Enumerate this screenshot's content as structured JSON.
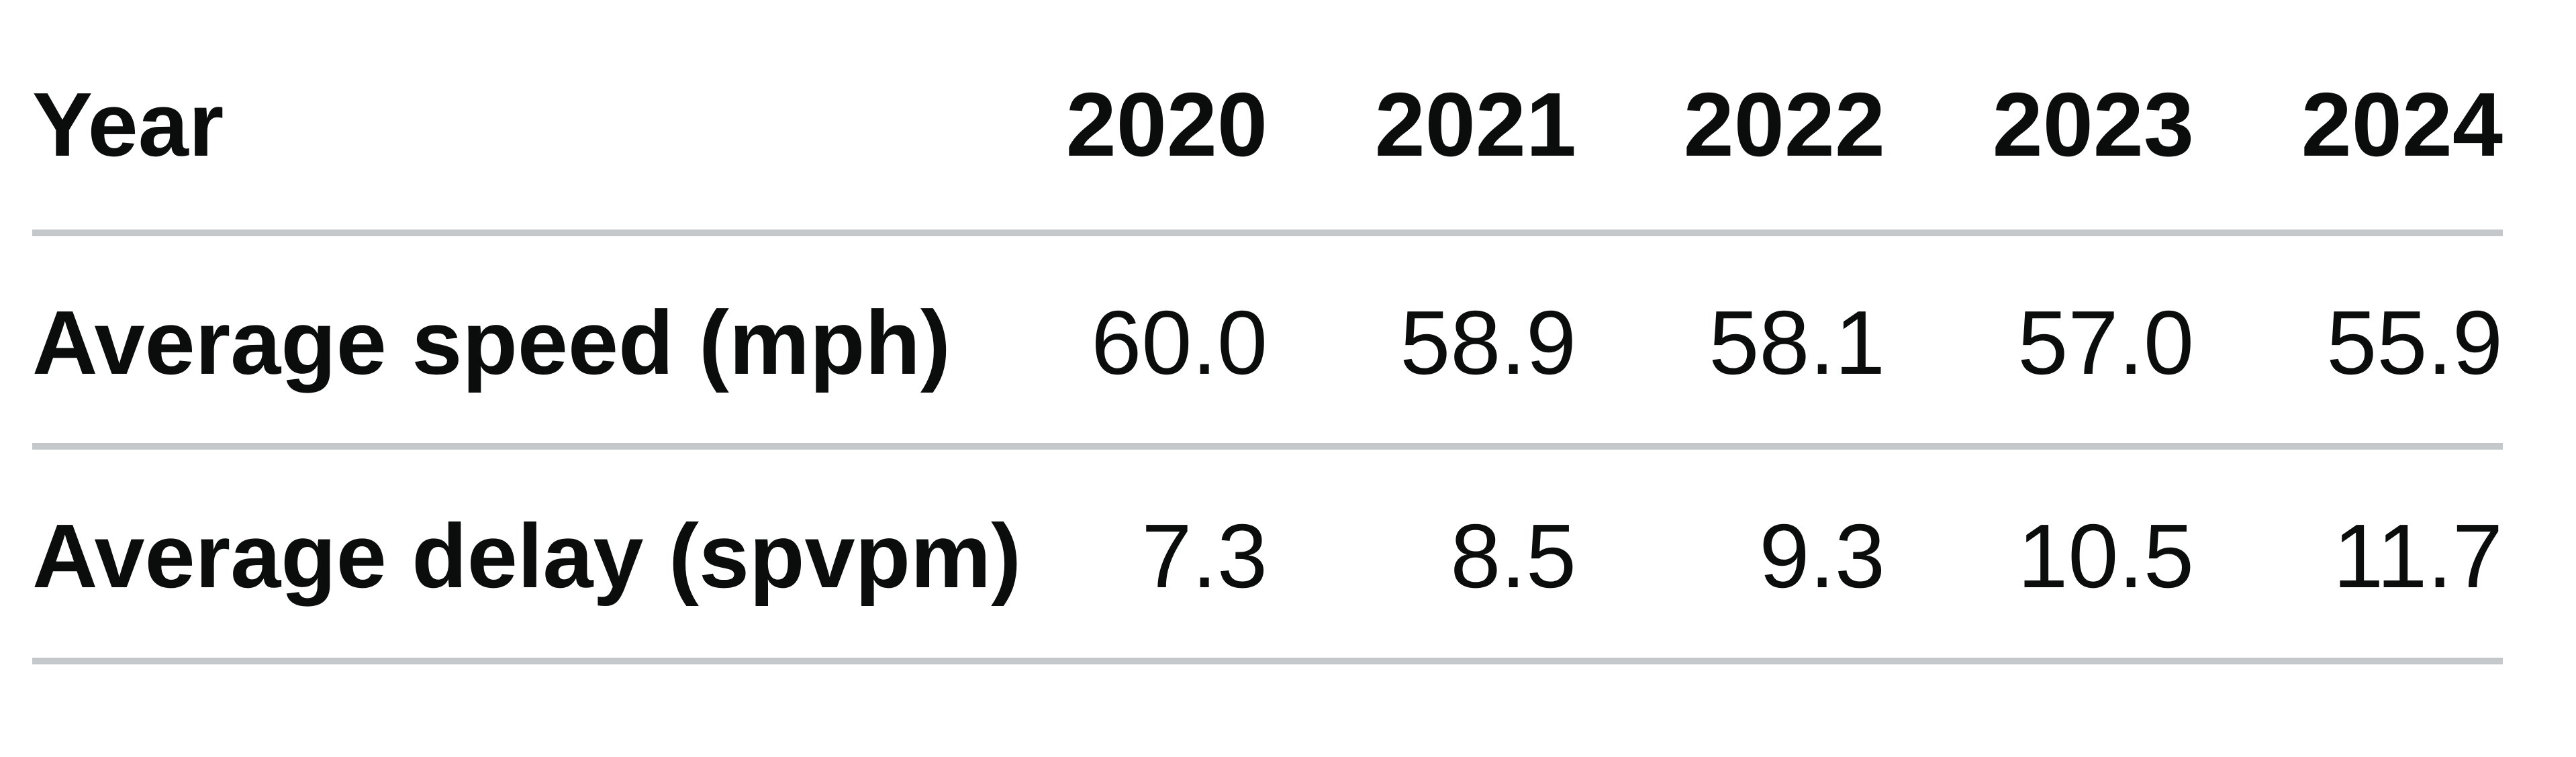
{
  "table": {
    "header": {
      "label": "Year",
      "years": [
        "2020",
        "2021",
        "2022",
        "2023",
        "2024"
      ]
    },
    "rows": [
      {
        "label": "Average speed (mph)",
        "values": [
          "60.0",
          "58.9",
          "58.1",
          "57.0",
          "55.9"
        ]
      },
      {
        "label": "Average delay (spvpm)",
        "values": [
          "7.3",
          "8.5",
          "9.3",
          "10.5",
          "11.7"
        ]
      }
    ]
  },
  "colors": {
    "background": "#ffffff",
    "text": "#0b0c0c",
    "rule": "#c5c8ca"
  },
  "chart_data": {
    "type": "table",
    "row_header": "Year",
    "categories": [
      "2020",
      "2021",
      "2022",
      "2023",
      "2024"
    ],
    "series": [
      {
        "name": "Average speed (mph)",
        "values": [
          60.0,
          58.9,
          58.1,
          57.0,
          55.9
        ]
      },
      {
        "name": "Average delay (spvpm)",
        "values": [
          7.3,
          8.5,
          9.3,
          10.5,
          11.7
        ]
      }
    ],
    "layout": {
      "grid": "horizontal-rules-only",
      "header_bold": true,
      "values_right_aligned": true
    }
  }
}
